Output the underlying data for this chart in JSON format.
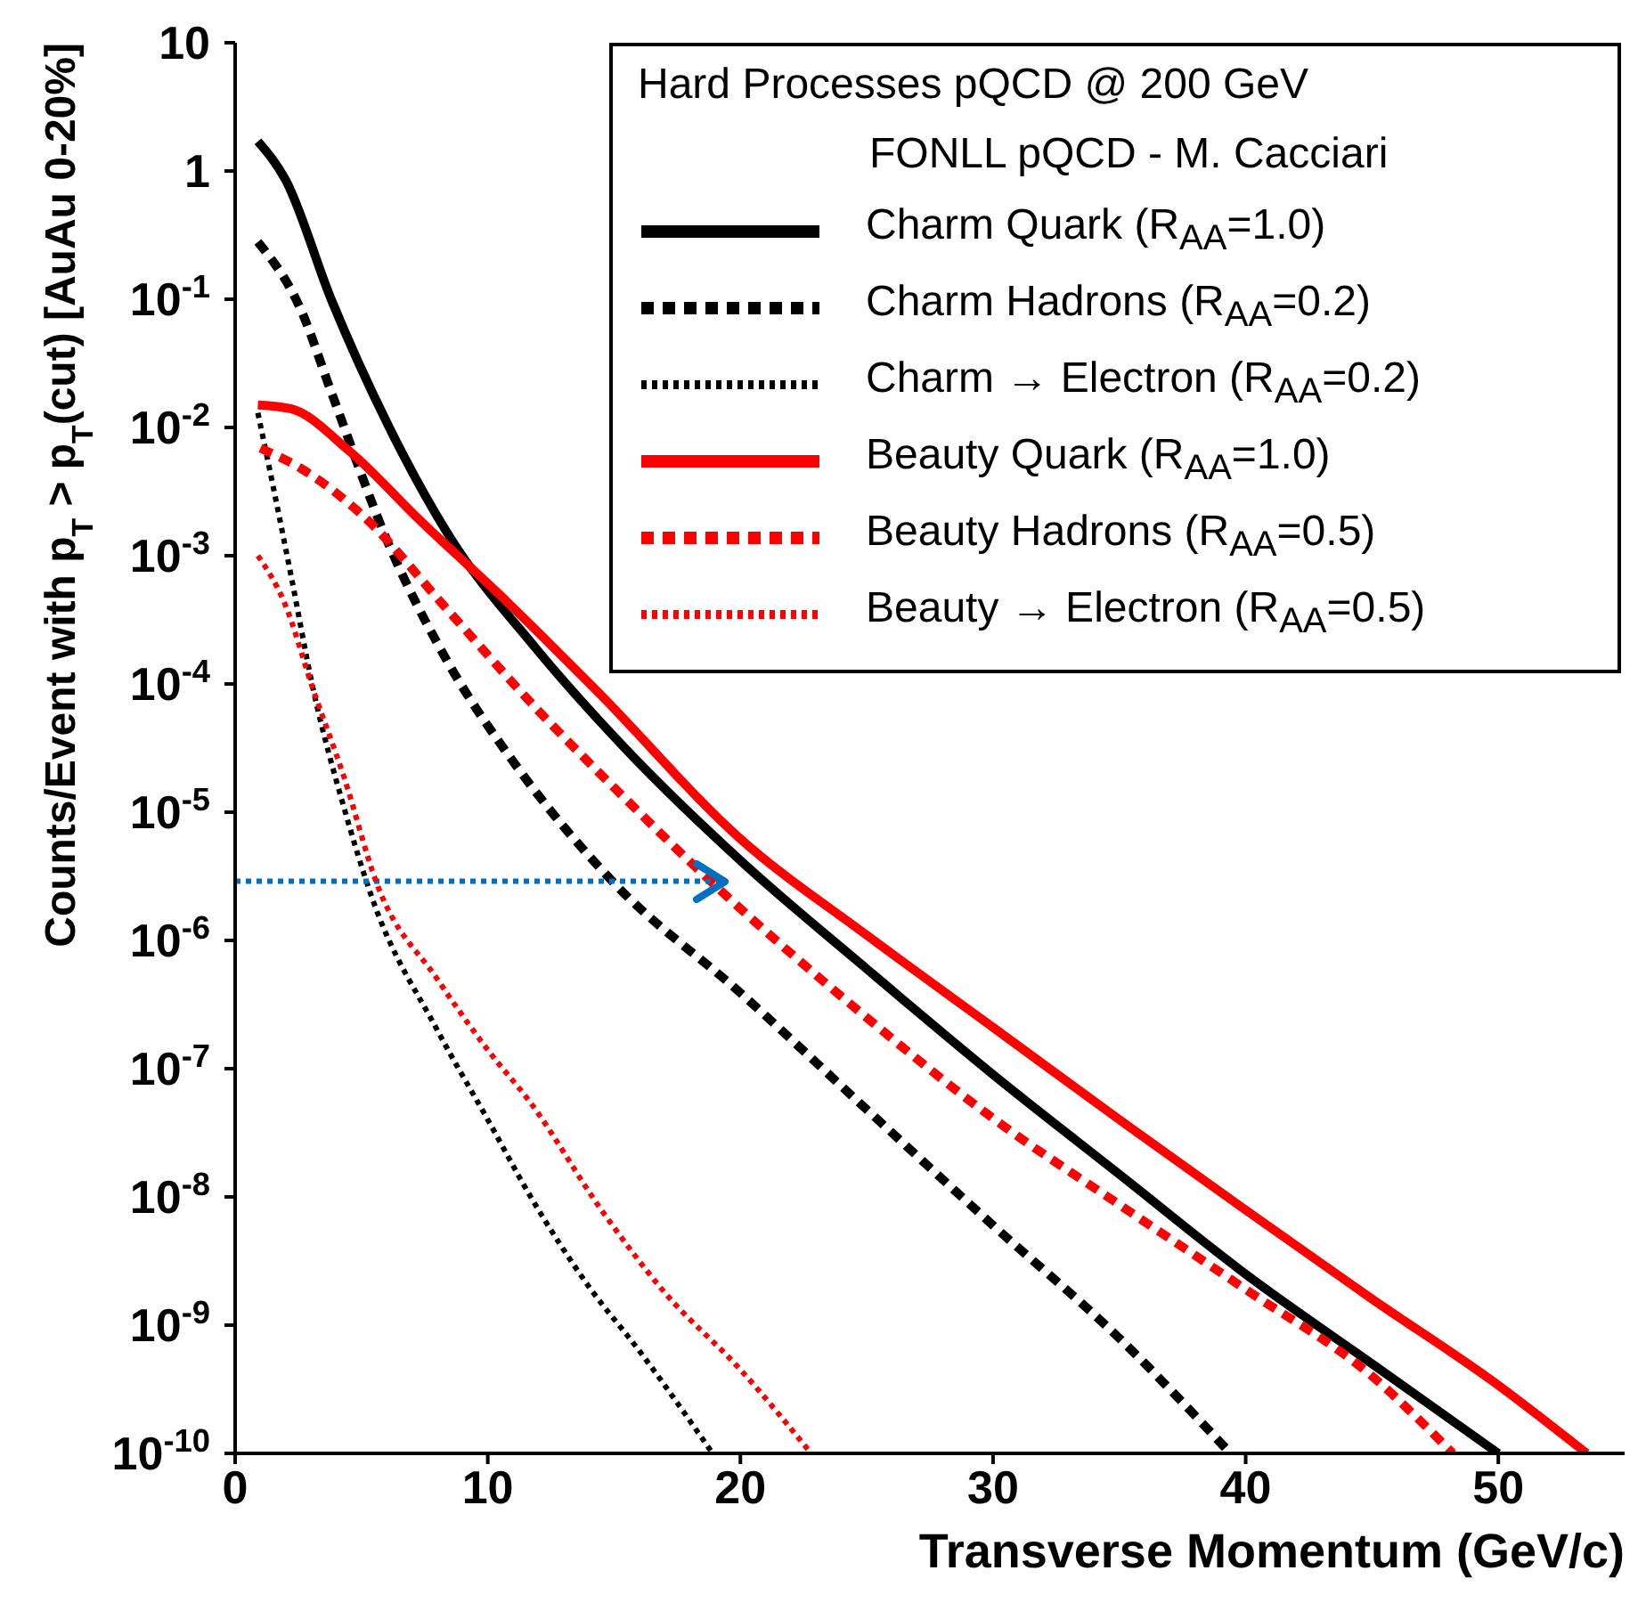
{
  "chart_data": {
    "type": "line",
    "xlabel": "Transverse Momentum (GeV/c)",
    "ylabel": "Counts/Event with p$_{T}$ > p$_{T}$(cut) [AuAu 0-20%]",
    "legend_title": "Hard Processes pQCD @ 200 GeV",
    "annotations": [
      "FONLL pQCD - M. Cacciari"
    ],
    "log": "y",
    "grid": false,
    "legend": "top right",
    "marker": "none",
    "xlim": [
      0,
      55
    ],
    "xticks": [
      0,
      10,
      20,
      30,
      40,
      50
    ],
    "ylim": [
      1e-10,
      10
    ],
    "yticks": [
      {
        "value": 10,
        "label": "10"
      },
      {
        "value": 1,
        "label": "1"
      },
      {
        "value": 0.1,
        "label": "10$^{-1}$"
      },
      {
        "value": 0.01,
        "label": "10$^{-2}$"
      },
      {
        "value": 0.001,
        "label": "10$^{-3}$"
      },
      {
        "value": 0.0001,
        "label": "10$^{-4}$"
      },
      {
        "value": 1e-05,
        "label": "10$^{-5}$"
      },
      {
        "value": 1e-06,
        "label": "10$^{-6}$"
      },
      {
        "value": 1e-07,
        "label": "10$^{-7}$"
      },
      {
        "value": 1e-08,
        "label": "10$^{-8}$"
      },
      {
        "value": 1e-09,
        "label": "10$^{-9}$"
      },
      {
        "value": 1e-10,
        "label": "10$^{-10}$"
      }
    ],
    "series": [
      {
        "name": "Charm Quark (R$_{AA}$=1.0)",
        "color": "#000000",
        "line_style": "solid",
        "x": [
          0.9,
          2,
          3.8,
          6.1,
          8.4,
          11.9,
          15.4,
          20,
          25,
          30,
          35,
          40,
          45,
          50
        ],
        "values": [
          1.7,
          0.85,
          0.1,
          0.01,
          0.0015,
          0.00019,
          3.2e-05,
          4.2e-06,
          6e-07,
          9e-08,
          1.5e-08,
          2.5e-09,
          5e-10,
          1e-10
        ]
      },
      {
        "name": "Charm Hadrons (R$_{AA}$=0.2)",
        "color": "#000000",
        "line_style": "dashed",
        "x": [
          0.9,
          2.6,
          3.8,
          6.1,
          8.4,
          11.2,
          15,
          20,
          25,
          30,
          35,
          39.4
        ],
        "values": [
          0.28,
          0.083,
          0.019,
          0.0012,
          0.00015,
          2.2e-05,
          2.8e-06,
          3.9e-07,
          4.8e-08,
          6e-09,
          7.9e-10,
          1e-10
        ]
      },
      {
        "name": "Charm → Electron (R$_{AA}$=0.2)",
        "color": "#000000",
        "line_style": "dotted",
        "x": [
          0.9,
          1.5,
          2.2,
          3.1,
          4.3,
          5.4,
          8,
          10,
          11.7,
          14,
          16,
          18.9
        ],
        "values": [
          0.013,
          0.0035,
          0.00072,
          8.9e-05,
          1.1e-05,
          2.2e-06,
          2e-07,
          4e-08,
          1e-08,
          2e-09,
          6.3e-10,
          1e-10
        ]
      },
      {
        "name": "Beauty Quark (R$_{AA}$=1.0)",
        "color": "#ff0000",
        "line_style": "solid",
        "x": [
          0.9,
          2.2,
          4.5,
          7.3,
          10.8,
          14.3,
          20,
          25,
          30,
          35,
          40,
          45,
          50,
          53.5
        ],
        "values": [
          0.015,
          0.014,
          0.0066,
          0.0019,
          0.00043,
          8.9e-05,
          6.2e-06,
          1.1e-06,
          2.1e-07,
          4e-08,
          7.9e-09,
          1.6e-09,
          3.4e-10,
          1e-10
        ]
      },
      {
        "name": "Beauty Hadrons (R$_{AA}$=0.5)",
        "color": "#ff0000",
        "line_style": "dashed",
        "x": [
          1,
          2.6,
          5,
          8.4,
          11.9,
          15.4,
          18.9,
          25,
          30,
          35,
          40,
          45,
          48.2
        ],
        "values": [
          0.0069,
          0.0048,
          0.0021,
          0.00038,
          6.5e-05,
          1.3e-05,
          2.8e-06,
          2.5e-07,
          4.1e-08,
          8.7e-09,
          1.9e-09,
          4e-10,
          1e-10
        ]
      },
      {
        "color": "#0070c0",
        "line_style": "dotted",
        "x": [
          0,
          19.2
        ],
        "values": [
          2.9e-06,
          2.9e-06
        ]
      },
      {
        "name": "Beauty → Electron (R$_{AA}$=0.5)",
        "color": "#ff0000",
        "line_style": "dotted",
        "x": [
          0.9,
          1.95,
          3.1,
          4.3,
          5.6,
          8,
          10,
          11.7,
          14.5,
          17,
          20,
          22.8
        ],
        "values": [
          0.001,
          0.00043,
          8.9e-05,
          1.9e-05,
          2.8e-06,
          5e-07,
          1.4e-07,
          5.4e-08,
          7.9e-09,
          1.8e-09,
          4.5e-10,
          1e-10
        ]
      }
    ]
  }
}
